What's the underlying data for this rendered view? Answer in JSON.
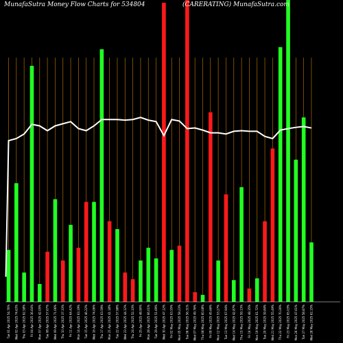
{
  "chart_data": {
    "type": "bar",
    "title_left": "MunafaSutra  Money Flow  Charts for 534804",
    "title_right": "(CARERATING) MunafaSutra.com",
    "colors": {
      "background": "#000000",
      "up": "#22ff22",
      "down": "#ff1a1a",
      "grid": "#b36b00",
      "line": "#ffffff"
    },
    "ylim": [
      0,
      100
    ],
    "bars": [
      {
        "label": "Tue 01 Apr 2025",
        "value": 17.2,
        "color": "up"
      },
      {
        "label": "Wed 02 Apr 2025",
        "value": 39.3,
        "color": "up"
      },
      {
        "label": "Thu 03 Apr 2025",
        "value": 9.7,
        "color": "up"
      },
      {
        "label": "Fri 04 Apr 2025",
        "value": 78.2,
        "color": "up"
      },
      {
        "label": "Mon 07 Apr 2025",
        "value": 5.9,
        "color": "up"
      },
      {
        "label": "Tue 08 Apr 2025",
        "value": 16.6,
        "color": "down"
      },
      {
        "label": "Wed 09 Apr 2025",
        "value": 34.0,
        "color": "up"
      },
      {
        "label": "Thu 10 Apr 2025",
        "value": 13.7,
        "color": "down"
      },
      {
        "label": "Fri 11 Apr 2025",
        "value": 25.5,
        "color": "up"
      },
      {
        "label": "Mon 14 Apr 2025",
        "value": 17.9,
        "color": "down"
      },
      {
        "label": "Tue 15 Apr 2025",
        "value": 33.1,
        "color": "down"
      },
      {
        "label": "Wed 16 Apr 2025",
        "value": 33.1,
        "color": "up"
      },
      {
        "label": "Thu 17 Apr 2025",
        "value": 83.7,
        "color": "up"
      },
      {
        "label": "Mon 21 Apr 2025",
        "value": 26.7,
        "color": "down"
      },
      {
        "label": "Tue 22 Apr 2025",
        "value": 24.1,
        "color": "up"
      },
      {
        "label": "Wed 23 Apr 2025",
        "value": 9.7,
        "color": "down"
      },
      {
        "label": "Thu 24 Apr 2025",
        "value": 7.5,
        "color": "down"
      },
      {
        "label": "Fri 25 Apr 2025",
        "value": 13.7,
        "color": "up"
      },
      {
        "label": "Mon 28 Apr 2025",
        "value": 17.9,
        "color": "up"
      },
      {
        "label": "Tue 29 Apr 2025",
        "value": 14.4,
        "color": "up"
      },
      {
        "label": "Wed 30 Apr 2025",
        "value": 99.1,
        "color": "down"
      },
      {
        "label": "Fri 02 May 2025",
        "value": 17.2,
        "color": "up"
      },
      {
        "label": "Mon 05 May 2025",
        "value": 18.6,
        "color": "down"
      },
      {
        "label": "Tue 06 May 2025",
        "value": 100.0,
        "color": "down"
      },
      {
        "label": "Wed 07 May 2025",
        "value": 3.2,
        "color": "down"
      },
      {
        "label": "Thu 08 May 2025",
        "value": 2.3,
        "color": "up"
      },
      {
        "label": "Fri 09 May 2025",
        "value": 62.8,
        "color": "down"
      },
      {
        "label": "Mon 12 May 2025",
        "value": 13.7,
        "color": "up"
      },
      {
        "label": "Tue 13 May 2025",
        "value": 35.6,
        "color": "down"
      },
      {
        "label": "Wed 14 May 2025",
        "value": 7.2,
        "color": "up"
      },
      {
        "label": "Thu 15 May 2025",
        "value": 38.0,
        "color": "up"
      },
      {
        "label": "Fri 16 May 2025",
        "value": 4.4,
        "color": "down"
      },
      {
        "label": "Mon 19 May 2025",
        "value": 7.8,
        "color": "up"
      },
      {
        "label": "Tue 20 May 2025",
        "value": 26.7,
        "color": "down"
      },
      {
        "label": "Wed 21 May 2025",
        "value": 50.8,
        "color": "down"
      },
      {
        "label": "Thu 22 May 2025",
        "value": 84.4,
        "color": "up"
      },
      {
        "label": "Fri 23 May 2025",
        "value": 100.0,
        "color": "up"
      },
      {
        "label": "Mon 26 May 2025",
        "value": 47.1,
        "color": "up"
      },
      {
        "label": "Tue 27 May 2025",
        "value": 61.1,
        "color": "up"
      },
      {
        "label": "Wed 28 May 2025",
        "value": 19.7,
        "color": "up"
      }
    ],
    "line": [
      53.4,
      54.1,
      55.6,
      58.8,
      58.3,
      56.7,
      58.3,
      59.0,
      59.7,
      57.4,
      56.7,
      58.3,
      60.4,
      60.4,
      60.4,
      60.2,
      60.4,
      61.1,
      60.2,
      59.7,
      55.1,
      60.4,
      59.9,
      57.4,
      57.6,
      56.9,
      56.0,
      56.0,
      55.6,
      56.5,
      56.7,
      56.5,
      56.5,
      54.8,
      54.1,
      56.9,
      57.4,
      57.8,
      58.1,
      57.6
    ],
    "line_first_value": 8.3,
    "tick_labels": [
      "Tue 01 Apr 2025 54.76%",
      "Wed 02 Apr 2025 74.63%",
      "Thu 03 Apr 2025 62.58%",
      "Fri 04 Apr 2025 36.64%",
      "Mon 07 Apr 2025 42.05%",
      "Tue 08 Apr 2025 57.67%",
      "Wed 09 Apr 2025 71.06%",
      "Thu 10 Apr 2025 37.33%",
      "Fri 11 Apr 2025 64.42%",
      "Mon 14 Apr 2025 63.19%",
      "Tue 15 Apr 2025 46.22%",
      "Wed 16 Apr 2025 74.06%",
      "Thu 17 Apr 2025 63.59%",
      "Mon 21 Apr 2025 41.18%",
      "Tue 22 Apr 2025 57.98%",
      "Wed 23 Apr 2025 44.12%",
      "Thu 24 Apr 2025 52.33%",
      "Fri 25 Apr 2025 48.90%",
      "Mon 28 Apr 2025 66.01%",
      "Tue 29 Apr 2025 51.69%",
      "Wed 30 Apr 2025 47.12%",
      "Fri 02 May 2025 63.55%",
      "Mon 05 May 2025 58.23%",
      "Tue 06 May 2025 56.31%",
      "Wed 07 May 2025 49.76%",
      "Thu 08 May 2025 60.08%",
      "Fri 09 May 2025 45.66%",
      "Mon 12 May 2025 53.27%",
      "Tue 13 May 2025 67.94%",
      "Wed 14 May 2025 42.87%",
      "Thu 15 May 2025 59.13%",
      "Fri 16 May 2025 48.35%",
      "Mon 19 May 2025 61.72%",
      "Tue 20 May 2025 39.84%",
      "Wed 21 May 2025 55.49%",
      "Thu 22 May 2025 70.26%",
      "Fri 23 May 2025 65.03%",
      "Mon 26 May 2025 47.61%",
      "Tue 27 May 2025 58.87%",
      "Wed 28 May 2025 62.15%"
    ]
  }
}
